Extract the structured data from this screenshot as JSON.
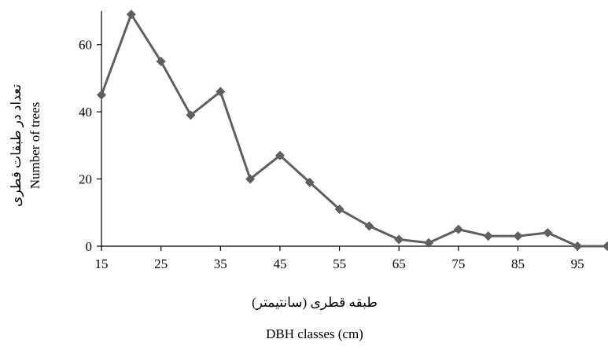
{
  "chart_data": {
    "type": "line",
    "title": "",
    "xlabel_fa": "طبقه قطری (سانتیمتر)",
    "xlabel": "DBH classes (cm)",
    "ylabel_fa": "تعداد در طبقات قطری",
    "ylabel": "Number of trees",
    "xlim": [
      15,
      100
    ],
    "ylim": [
      0,
      70
    ],
    "xticks": [
      15,
      25,
      35,
      45,
      55,
      65,
      75,
      85,
      95
    ],
    "yticks": [
      0,
      20,
      40,
      60
    ],
    "grid": false,
    "legend": "none",
    "marker": "diamond",
    "line_color": "#5f5f5f",
    "series": [
      {
        "x": [
          15,
          20,
          25,
          30,
          35,
          40,
          45,
          50,
          55,
          60,
          65,
          70,
          75,
          80,
          85,
          90,
          95,
          100
        ],
        "values": [
          45,
          69,
          55,
          39,
          46,
          20,
          27,
          19,
          11,
          6,
          2,
          1,
          5,
          3,
          3,
          4,
          0,
          0
        ]
      }
    ]
  }
}
